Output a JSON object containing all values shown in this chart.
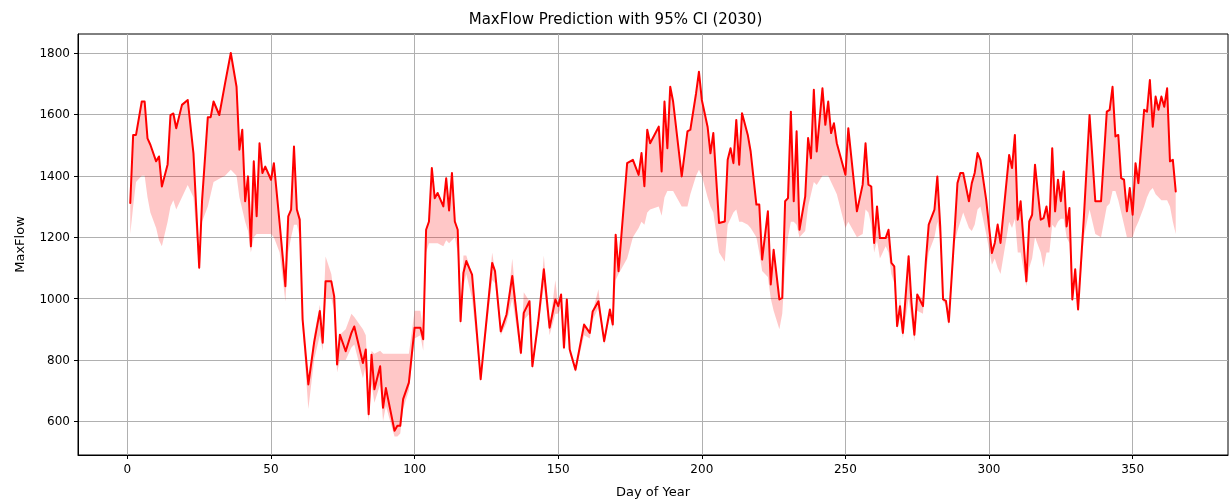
{
  "chart_data": {
    "type": "line",
    "title": "MaxFlow Prediction with 95% CI (2030)",
    "xlabel": "Day of Year",
    "ylabel": "MaxFlow",
    "xlim": [
      -17.2,
      383.2
    ],
    "xticks": [
      0,
      50,
      100,
      150,
      200,
      250,
      300,
      350
    ],
    "ylim": [
      490,
      1862
    ],
    "yticks": [
      600,
      800,
      1000,
      1200,
      1400,
      1600,
      1800
    ],
    "grid": true,
    "marker": "none",
    "line_style": "solid",
    "x": [
      1,
      2,
      3,
      5,
      6,
      7,
      8,
      10,
      11,
      12,
      14,
      15,
      16,
      17,
      19,
      21,
      23,
      25,
      26,
      28,
      29,
      30,
      32,
      34,
      36,
      38,
      39,
      40,
      41,
      42,
      43,
      44,
      45,
      46,
      47,
      48,
      50,
      51,
      53,
      55,
      56,
      57,
      58,
      59,
      60,
      61,
      63,
      65,
      67,
      68,
      69,
      71,
      72,
      73,
      74,
      76,
      78,
      79,
      82,
      83,
      84,
      85,
      86,
      88,
      89,
      90,
      93,
      94,
      95,
      96,
      98,
      100,
      102,
      103,
      104,
      105,
      106,
      107,
      108,
      110,
      111,
      112,
      113,
      114,
      115,
      116,
      117,
      118,
      120,
      123,
      127,
      128,
      130,
      132,
      134,
      137,
      138,
      140,
      141,
      143,
      145,
      147,
      149,
      150,
      151,
      152,
      153,
      154,
      156,
      159,
      161,
      162,
      164,
      166,
      168,
      169,
      170,
      171,
      174,
      176,
      178,
      179,
      180,
      181,
      182,
      185,
      186,
      187,
      188,
      189,
      190,
      193,
      195,
      196,
      198,
      199,
      200,
      202,
      203,
      204,
      206,
      208,
      209,
      210,
      211,
      212,
      213,
      214,
      216,
      217,
      219,
      220,
      221,
      223,
      224,
      225,
      227,
      228,
      229,
      230,
      231,
      232,
      233,
      234,
      236,
      237,
      238,
      239,
      240,
      242,
      243,
      244,
      245,
      246,
      247,
      250,
      251,
      254,
      256,
      257,
      258,
      259,
      260,
      261,
      262,
      264,
      265,
      266,
      267,
      268,
      269,
      270,
      272,
      273,
      274,
      275,
      277,
      278,
      279,
      281,
      282,
      283,
      284,
      285,
      286,
      288,
      289,
      290,
      291,
      293,
      294,
      295,
      296,
      297,
      299,
      301,
      302,
      303,
      304,
      307,
      308,
      309,
      310,
      311,
      313,
      314,
      315,
      316,
      318,
      319,
      320,
      321,
      322,
      323,
      324,
      325,
      326,
      327,
      328,
      329,
      330,
      331,
      333,
      335,
      337,
      339,
      341,
      342,
      343,
      344,
      345,
      346,
      347,
      348,
      349,
      350,
      351,
      352,
      354,
      355,
      356,
      357,
      358,
      359,
      360,
      361,
      362,
      363,
      364,
      365
    ],
    "series": [
      {
        "color": "#ff0000",
        "values": [
          1311,
          1533,
          1533,
          1642,
          1642,
          1522,
          1501,
          1447,
          1463,
          1365,
          1437,
          1598,
          1603,
          1555,
          1631,
          1647,
          1473,
          1100,
          1320,
          1591,
          1591,
          1642,
          1598,
          1701,
          1800,
          1690,
          1485,
          1550,
          1317,
          1398,
          1170,
          1447,
          1268,
          1506,
          1409,
          1430,
          1387,
          1441,
          1246,
          1040,
          1268,
          1290,
          1495,
          1290,
          1257,
          932,
          720,
          856,
          959,
          856,
          1056,
          1056,
          1007,
          785,
          882,
          828,
          888,
          909,
          790,
          834,
          623,
          817,
          704,
          779,
          644,
          708,
          569,
          585,
          585,
          672,
          726,
          905,
          905,
          867,
          1224,
          1251,
          1425,
          1327,
          1344,
          1300,
          1392,
          1287,
          1409,
          1251,
          1224,
          926,
          1084,
          1122,
          1078,
          737,
          1116,
          1089,
          893,
          948,
          1073,
          823,
          953,
          991,
          779,
          921,
          1095,
          905,
          997,
          975,
          1013,
          840,
          997,
          834,
          768,
          915,
          888,
          958,
          991,
          861,
          964,
          915,
          1208,
          1089,
          1441,
          1452,
          1403,
          1474,
          1366,
          1550,
          1506,
          1560,
          1414,
          1642,
          1490,
          1690,
          1642,
          1398,
          1545,
          1550,
          1669,
          1739,
          1647,
          1560,
          1473,
          1539,
          1246,
          1251,
          1452,
          1490,
          1441,
          1582,
          1436,
          1604,
          1533,
          1479,
          1306,
          1306,
          1127,
          1284,
          1046,
          1159,
          997,
          1002,
          1317,
          1327,
          1609,
          1317,
          1545,
          1224,
          1333,
          1523,
          1457,
          1680,
          1479,
          1685,
          1566,
          1642,
          1539,
          1571,
          1506,
          1403,
          1555,
          1284,
          1371,
          1506,
          1371,
          1365,
          1181,
          1300,
          1197,
          1197,
          1224,
          1116,
          1105,
          910,
          975,
          888,
          1138,
          986,
          882,
          1013,
          975,
          1122,
          1241,
          1290,
          1398,
          1235,
          997,
          992,
          924,
          1219,
          1376,
          1409,
          1409,
          1317,
          1376,
          1409,
          1474,
          1452,
          1322,
          1148,
          1181,
          1241,
          1181,
          1468,
          1425,
          1533,
          1257,
          1317,
          1056,
          1251,
          1273,
          1436,
          1257,
          1262,
          1300,
          1235,
          1490,
          1284,
          1387,
          1317,
          1414,
          1235,
          1295,
          997,
          1095,
          964,
          1262,
          1598,
          1317,
          1317,
          1609,
          1615,
          1690,
          1528,
          1533,
          1392,
          1387,
          1284,
          1360,
          1273,
          1441,
          1376,
          1615,
          1609,
          1712,
          1560,
          1658,
          1615,
          1658,
          1625,
          1685,
          1447,
          1452,
          1349
        ],
        "lower": [
          1210,
          1300,
          1380,
          1400,
          1400,
          1330,
          1280,
          1230,
          1190,
          1170,
          1250,
          1300,
          1320,
          1290,
          1330,
          1370,
          1330,
          1090,
          1250,
          1300,
          1340,
          1380,
          1390,
          1400,
          1420,
          1400,
          1330,
          1290,
          1250,
          1220,
          1150,
          1200,
          1210,
          1210,
          1210,
          1210,
          1210,
          1200,
          1150,
          990,
          1150,
          1200,
          1240,
          1240,
          1200,
          900,
          640,
          800,
          880,
          830,
          1000,
          1000,
          960,
          760,
          800,
          800,
          840,
          850,
          740,
          780,
          600,
          720,
          660,
          720,
          600,
          650,
          550,
          550,
          560,
          640,
          700,
          870,
          880,
          830,
          1150,
          1180,
          1180,
          1180,
          1180,
          1170,
          1190,
          1180,
          1190,
          1200,
          1150,
          910,
          1040,
          1080,
          1000,
          730,
          1060,
          1050,
          880,
          920,
          1000,
          810,
          930,
          950,
          770,
          900,
          1040,
          880,
          950,
          950,
          970,
          830,
          940,
          820,
          760,
          880,
          870,
          930,
          970,
          850,
          940,
          900,
          1060,
          1080,
          1130,
          1200,
          1230,
          1250,
          1240,
          1280,
          1290,
          1300,
          1270,
          1330,
          1350,
          1350,
          1350,
          1300,
          1300,
          1340,
          1400,
          1420,
          1400,
          1330,
          1300,
          1280,
          1150,
          1120,
          1240,
          1260,
          1280,
          1290,
          1250,
          1250,
          1240,
          1230,
          1200,
          1150,
          1090,
          1070,
          1000,
          960,
          900,
          950,
          1100,
          1200,
          1250,
          1250,
          1240,
          1200,
          1220,
          1300,
          1340,
          1380,
          1370,
          1400,
          1400,
          1400,
          1380,
          1360,
          1340,
          1230,
          1250,
          1200,
          1210,
          1290,
          1280,
          1240,
          1150,
          1190,
          1130,
          1170,
          1150,
          1080,
          1050,
          900,
          940,
          870,
          1000,
          930,
          860,
          960,
          950,
          1080,
          1150,
          1200,
          1250,
          1200,
          990,
          980,
          910,
          1180,
          1220,
          1250,
          1280,
          1230,
          1220,
          1240,
          1290,
          1300,
          1210,
          1110,
          1130,
          1100,
          1080,
          1250,
          1230,
          1260,
          1150,
          1150,
          1040,
          1100,
          1130,
          1200,
          1150,
          1100,
          1150,
          1150,
          1240,
          1230,
          1250,
          1260,
          1260,
          1200,
          1180,
          990,
          1050,
          960,
          1200,
          1290,
          1210,
          1200,
          1300,
          1310,
          1350,
          1350,
          1320,
          1280,
          1240,
          1200,
          1200,
          1200,
          1230,
          1250,
          1300,
          1330,
          1350,
          1360,
          1340,
          1330,
          1320,
          1320,
          1320,
          1300,
          1250,
          1210
        ],
        "upper": [
          1311,
          1533,
          1533,
          1642,
          1642,
          1522,
          1501,
          1447,
          1463,
          1365,
          1437,
          1598,
          1603,
          1555,
          1631,
          1647,
          1473,
          1100,
          1320,
          1591,
          1591,
          1642,
          1598,
          1701,
          1800,
          1690,
          1485,
          1550,
          1317,
          1398,
          1170,
          1447,
          1268,
          1506,
          1409,
          1430,
          1387,
          1441,
          1246,
          1040,
          1268,
          1290,
          1495,
          1290,
          1257,
          932,
          720,
          880,
          980,
          900,
          1137,
          1080,
          1007,
          785,
          882,
          900,
          950,
          940,
          900,
          880,
          700,
          830,
          820,
          830,
          820,
          820,
          820,
          820,
          820,
          820,
          820,
          960,
          960,
          900,
          1230,
          1251,
          1425,
          1327,
          1344,
          1300,
          1392,
          1287,
          1409,
          1251,
          1224,
          926,
          1140,
          1140,
          1078,
          737,
          1150,
          1089,
          893,
          948,
          1130,
          823,
          1020,
          991,
          779,
          921,
          1140,
          905,
          1060,
          975,
          1013,
          840,
          997,
          834,
          768,
          915,
          888,
          958,
          1030,
          861,
          964,
          915,
          1208,
          1089,
          1441,
          1452,
          1403,
          1474,
          1366,
          1550,
          1506,
          1560,
          1414,
          1642,
          1490,
          1690,
          1642,
          1398,
          1545,
          1550,
          1669,
          1739,
          1647,
          1560,
          1473,
          1539,
          1246,
          1251,
          1452,
          1490,
          1441,
          1582,
          1436,
          1604,
          1533,
          1479,
          1306,
          1306,
          1127,
          1284,
          1046,
          1159,
          997,
          1002,
          1317,
          1327,
          1609,
          1317,
          1545,
          1224,
          1333,
          1523,
          1457,
          1680,
          1479,
          1685,
          1566,
          1642,
          1539,
          1571,
          1506,
          1403,
          1555,
          1284,
          1371,
          1506,
          1371,
          1365,
          1181,
          1300,
          1197,
          1197,
          1224,
          1116,
          1105,
          910,
          1010,
          888,
          1140,
          986,
          882,
          1013,
          1000,
          1122,
          1241,
          1290,
          1398,
          1235,
          997,
          992,
          924,
          1219,
          1376,
          1409,
          1409,
          1317,
          1376,
          1409,
          1474,
          1452,
          1322,
          1148,
          1181,
          1241,
          1181,
          1468,
          1425,
          1533,
          1257,
          1317,
          1056,
          1251,
          1273,
          1436,
          1257,
          1262,
          1300,
          1235,
          1490,
          1284,
          1387,
          1317,
          1414,
          1235,
          1295,
          997,
          1095,
          964,
          1262,
          1598,
          1317,
          1317,
          1609,
          1615,
          1690,
          1528,
          1533,
          1392,
          1387,
          1284,
          1360,
          1273,
          1441,
          1376,
          1615,
          1609,
          1712,
          1560,
          1658,
          1615,
          1658,
          1625,
          1685,
          1447,
          1452,
          1349
        ]
      }
    ]
  }
}
